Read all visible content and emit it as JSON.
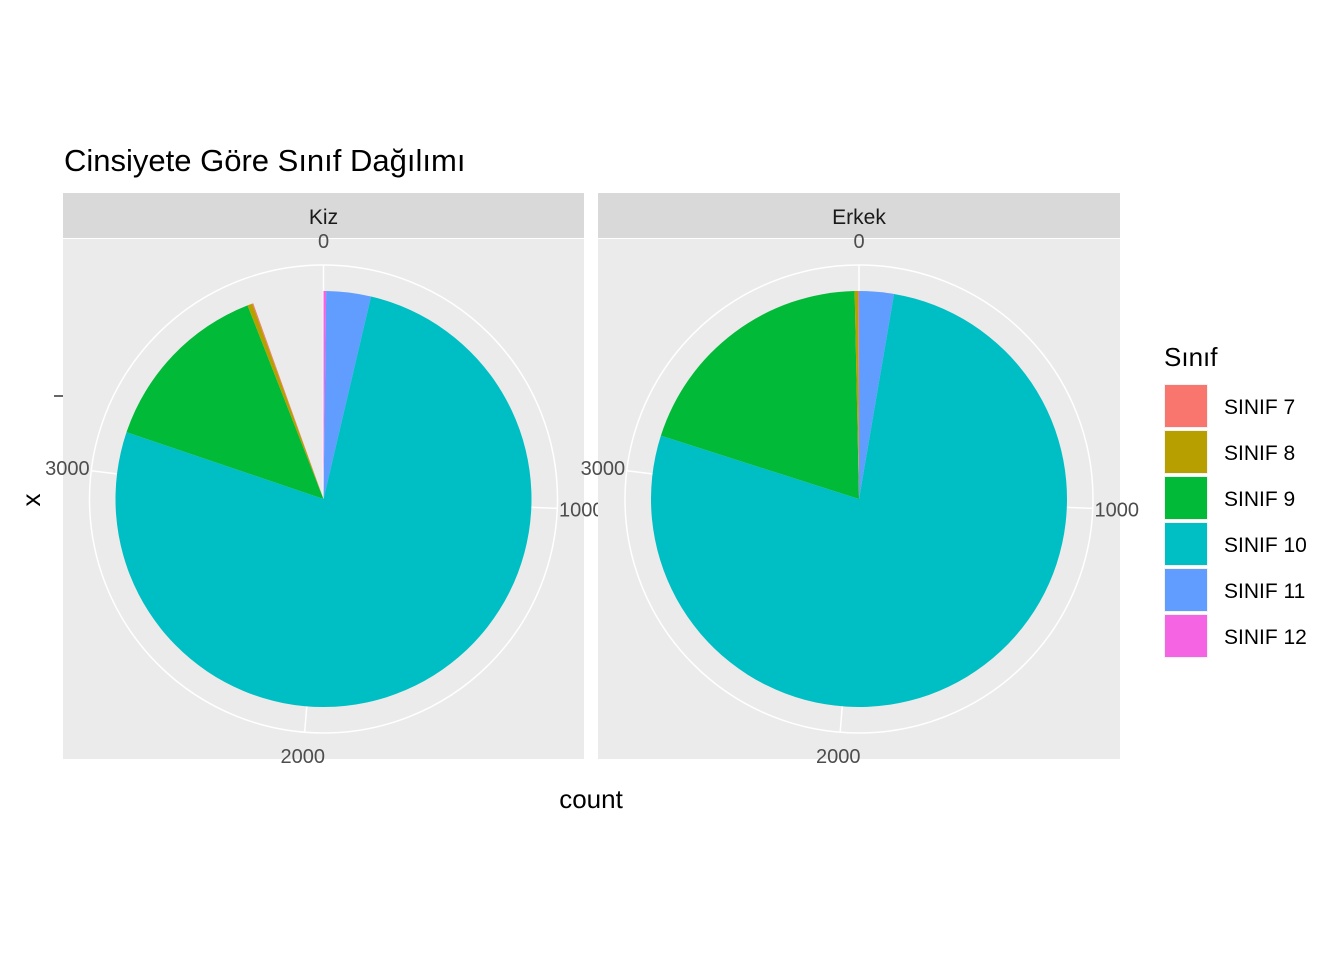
{
  "chart_data": {
    "type": "pie",
    "title": "Cinsiyete Göre Sınıf Dağılımı",
    "xlabel": "count",
    "ylabel": "x",
    "legend": {
      "title": "Sınıf",
      "position": "right",
      "entries": [
        {
          "label": "SINIF 7",
          "color": "#F8766D"
        },
        {
          "label": "SINIF 8",
          "color": "#B79F00"
        },
        {
          "label": "SINIF 9",
          "color": "#00BA38"
        },
        {
          "label": "SINIF 10",
          "color": "#00BFC4"
        },
        {
          "label": "SINIF 11",
          "color": "#619CFF"
        },
        {
          "label": "SINIF 12",
          "color": "#F564E3"
        }
      ]
    },
    "count_axis": {
      "max": 3900,
      "ticks": [
        0,
        1000,
        2000,
        3000
      ],
      "tick_labels": [
        "0",
        "1000",
        "2000",
        "3000"
      ]
    },
    "grid": true,
    "panels": [
      {
        "label": "Kiz",
        "series": [
          {
            "name": "SINIF 12",
            "value": 8
          },
          {
            "name": "SINIF 11",
            "value": 135
          },
          {
            "name": "SINIF 10",
            "value": 2985
          },
          {
            "name": "SINIF 9",
            "value": 540
          },
          {
            "name": "SINIF 8",
            "value": 15
          },
          {
            "name": "SINIF 7",
            "value": 3
          }
        ]
      },
      {
        "label": "Erkek",
        "series": [
          {
            "name": "SINIF 12",
            "value": 0
          },
          {
            "name": "SINIF 11",
            "value": 105
          },
          {
            "name": "SINIF 10",
            "value": 3012
          },
          {
            "name": "SINIF 9",
            "value": 770
          },
          {
            "name": "SINIF 8",
            "value": 10
          },
          {
            "name": "SINIF 7",
            "value": 3
          }
        ]
      }
    ]
  }
}
